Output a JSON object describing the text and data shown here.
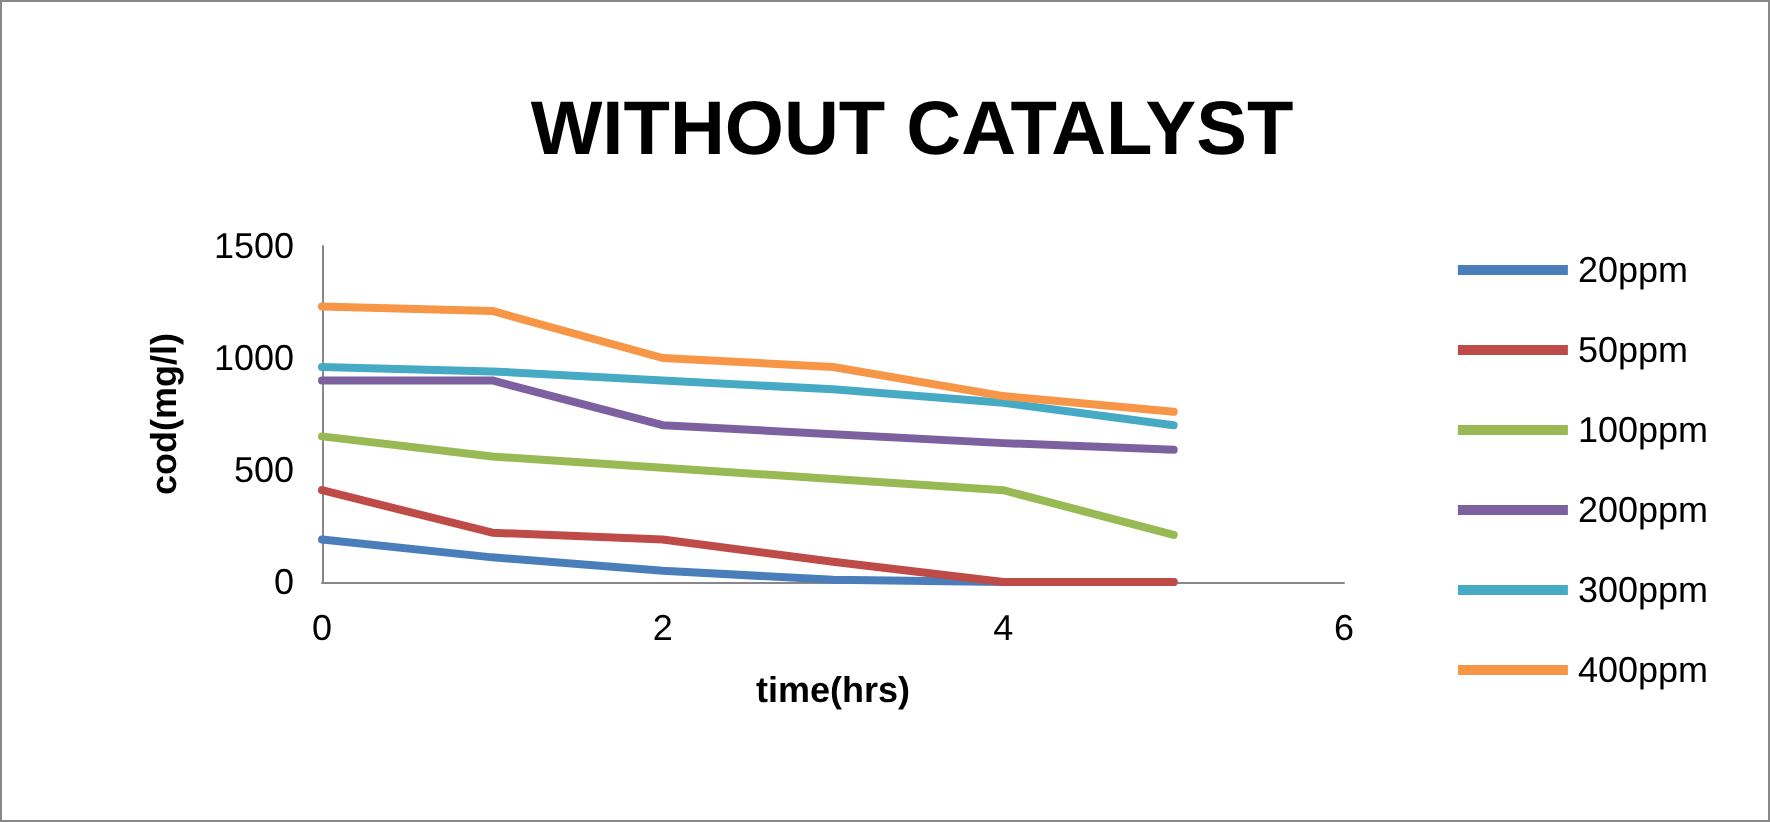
{
  "chart_data": {
    "type": "line",
    "title": "WITHOUT CATALYST",
    "xlabel": "time(hrs)",
    "ylabel": "cod(mg/l)",
    "x": [
      0,
      1,
      2,
      3,
      4,
      5
    ],
    "series": [
      {
        "name": "20ppm",
        "color": "#4a7ebb",
        "values": [
          190,
          110,
          50,
          10,
          0,
          0
        ]
      },
      {
        "name": "50ppm",
        "color": "#be4b48",
        "values": [
          410,
          220,
          190,
          90,
          0,
          0
        ]
      },
      {
        "name": "100ppm",
        "color": "#98b954",
        "values": [
          650,
          560,
          510,
          460,
          410,
          210
        ]
      },
      {
        "name": "200ppm",
        "color": "#7d60a0",
        "values": [
          900,
          900,
          700,
          660,
          620,
          590
        ]
      },
      {
        "name": "300ppm",
        "color": "#46aac5",
        "values": [
          960,
          940,
          900,
          860,
          800,
          700
        ]
      },
      {
        "name": "400ppm",
        "color": "#f79646",
        "values": [
          1230,
          1210,
          1000,
          960,
          830,
          760
        ]
      }
    ],
    "xlim": [
      0,
      6
    ],
    "xticks": [
      0,
      2,
      4,
      6
    ],
    "ylim": [
      0,
      1500
    ],
    "yticks": [
      0,
      500,
      1000,
      1500
    ],
    "grid": false,
    "legend": "right",
    "marker": "none",
    "line_style": "solid"
  }
}
